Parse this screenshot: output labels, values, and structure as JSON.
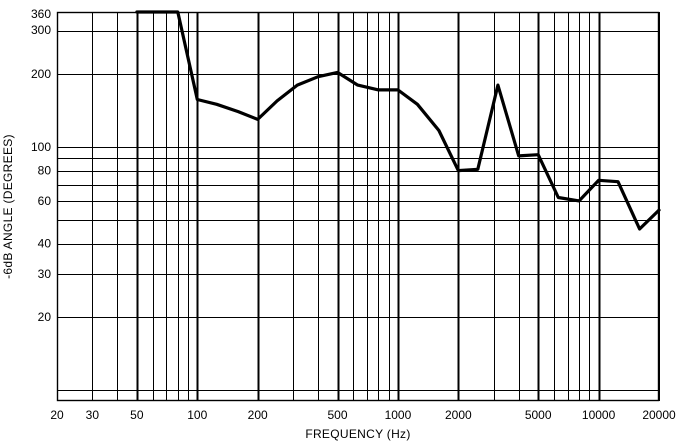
{
  "chart_data": {
    "type": "line",
    "title": "",
    "xlabel": "FREQUENCY (Hz)",
    "ylabel": "-6dB ANGLE (DEGREES)",
    "xscale": "log",
    "yscale": "log",
    "xlim": [
      20,
      20000
    ],
    "ylim": [
      9,
      360
    ],
    "grid": true,
    "legend": "none",
    "x_ticks": [
      20,
      30,
      50,
      100,
      200,
      500,
      1000,
      2000,
      5000,
      10000,
      20000
    ],
    "x_tick_labels": [
      "20",
      "30",
      "50",
      "100",
      "200",
      "500",
      "1000",
      "2000",
      "5000",
      "10000",
      "20000"
    ],
    "y_ticks": [
      20,
      30,
      40,
      60,
      80,
      100,
      200,
      300,
      360
    ],
    "y_tick_labels": [
      "20",
      "30",
      "40",
      "60",
      "80",
      "100",
      "200",
      "300",
      "360"
    ],
    "series": [
      {
        "x": [
          50,
          63,
          80,
          100,
          125,
          160,
          200,
          250,
          315,
          400,
          500,
          630,
          800,
          1000,
          1250,
          1600,
          2000,
          2500,
          3150,
          4000,
          5000,
          6300,
          8000,
          10000,
          12500,
          16000,
          20000
        ],
        "y": [
          360,
          360,
          360,
          157,
          150,
          140,
          130,
          155,
          180,
          195,
          203,
          180,
          172,
          172,
          150,
          117,
          80,
          81,
          180,
          92,
          93,
          62,
          60,
          73,
          72,
          46,
          55
        ]
      }
    ],
    "colors": {
      "line": "#000000",
      "grid": "#000000",
      "background": "#ffffff"
    }
  }
}
